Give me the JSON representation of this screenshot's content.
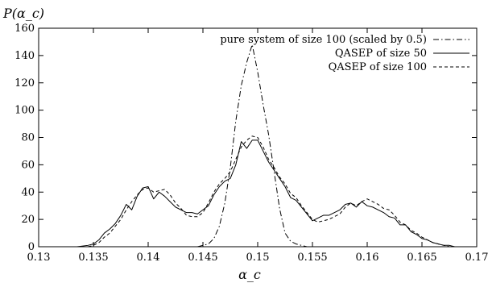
{
  "chart_data": {
    "type": "line",
    "ylabel": "P(α_c)",
    "xlabel": "α_c",
    "xlim": [
      0.13,
      0.17
    ],
    "ylim": [
      0,
      160
    ],
    "x_ticks": [
      "0.13",
      "0.135",
      "0.14",
      "0.145",
      "0.15",
      "0.155",
      "0.16",
      "0.165",
      "0.17"
    ],
    "x_tick_values": [
      0.13,
      0.135,
      0.14,
      0.145,
      0.15,
      0.155,
      0.16,
      0.165,
      0.17
    ],
    "y_ticks": [
      "0",
      "20",
      "40",
      "60",
      "80",
      "100",
      "120",
      "140",
      "160"
    ],
    "y_tick_values": [
      0,
      20,
      40,
      60,
      80,
      100,
      120,
      140,
      160
    ],
    "grid": false,
    "legend_position": "top-right",
    "series": [
      {
        "name": "pure system of size 100 (scaled by 0.5)",
        "style": "dash-dot",
        "x": [
          0.1445,
          0.1455,
          0.146,
          0.1465,
          0.147,
          0.1475,
          0.148,
          0.1485,
          0.149,
          0.1495,
          0.15,
          0.1505,
          0.151,
          0.1515,
          0.152,
          0.1525,
          0.153,
          0.1535,
          0.154,
          0.1545
        ],
        "y": [
          0,
          2,
          6,
          15,
          32,
          58,
          92,
          118,
          135,
          148,
          128,
          104,
          82,
          55,
          28,
          10,
          4,
          2,
          1,
          0
        ]
      },
      {
        "name": "QASEP of size 50",
        "style": "solid",
        "x": [
          0.1335,
          0.1345,
          0.135,
          0.1355,
          0.136,
          0.1365,
          0.137,
          0.1375,
          0.138,
          0.1385,
          0.139,
          0.1395,
          0.14,
          0.1405,
          0.141,
          0.1415,
          0.142,
          0.1425,
          0.143,
          0.1435,
          0.144,
          0.1445,
          0.145,
          0.1455,
          0.146,
          0.1465,
          0.147,
          0.1475,
          0.148,
          0.1485,
          0.149,
          0.1495,
          0.15,
          0.1505,
          0.151,
          0.1515,
          0.152,
          0.1525,
          0.153,
          0.1535,
          0.154,
          0.1545,
          0.155,
          0.1555,
          0.156,
          0.1565,
          0.157,
          0.1575,
          0.158,
          0.1585,
          0.159,
          0.1595,
          0.16,
          0.1605,
          0.161,
          0.1615,
          0.162,
          0.1625,
          0.163,
          0.1635,
          0.164,
          0.1645,
          0.165,
          0.1655,
          0.166,
          0.1665,
          0.167,
          0.1675,
          0.168
        ],
        "y": [
          0,
          1,
          2,
          5,
          10,
          13,
          17,
          23,
          31,
          27,
          37,
          43,
          44,
          35,
          40,
          37,
          33,
          29,
          27,
          25,
          25,
          24,
          27,
          30,
          38,
          44,
          48,
          50,
          60,
          77,
          72,
          78,
          78,
          70,
          62,
          56,
          50,
          44,
          36,
          34,
          29,
          24,
          19,
          21,
          23,
          23,
          25,
          27,
          31,
          32,
          29,
          33,
          30,
          29,
          27,
          25,
          22,
          21,
          16,
          16,
          11,
          9,
          6,
          5,
          3,
          2,
          1,
          1,
          0
        ]
      },
      {
        "name": "QASEP of size 100",
        "style": "dashed",
        "x": [
          0.1335,
          0.1345,
          0.135,
          0.1355,
          0.136,
          0.1365,
          0.137,
          0.1375,
          0.138,
          0.1385,
          0.139,
          0.1395,
          0.14,
          0.1405,
          0.141,
          0.1415,
          0.142,
          0.1425,
          0.143,
          0.1435,
          0.144,
          0.1445,
          0.145,
          0.1455,
          0.146,
          0.1465,
          0.147,
          0.1475,
          0.148,
          0.1485,
          0.149,
          0.1495,
          0.15,
          0.1505,
          0.151,
          0.1515,
          0.152,
          0.1525,
          0.153,
          0.1535,
          0.154,
          0.1545,
          0.155,
          0.1555,
          0.156,
          0.1565,
          0.157,
          0.1575,
          0.158,
          0.1585,
          0.159,
          0.1595,
          0.16,
          0.1605,
          0.161,
          0.1615,
          0.162,
          0.1625,
          0.163,
          0.1635,
          0.164,
          0.1645,
          0.165,
          0.1655,
          0.166,
          0.1665,
          0.167,
          0.1675,
          0.168
        ],
        "y": [
          0,
          0,
          1,
          3,
          7,
          10,
          15,
          20,
          27,
          33,
          38,
          42,
          43,
          40,
          41,
          42,
          38,
          32,
          28,
          23,
          22,
          22,
          25,
          32,
          40,
          46,
          50,
          55,
          64,
          73,
          78,
          81,
          80,
          73,
          64,
          58,
          51,
          46,
          39,
          36,
          30,
          25,
          20,
          18,
          19,
          20,
          22,
          24,
          29,
          32,
          30,
          33,
          35,
          33,
          31,
          28,
          27,
          23,
          18,
          16,
          12,
          10,
          7,
          5,
          3,
          2,
          1,
          0,
          0
        ]
      }
    ]
  }
}
